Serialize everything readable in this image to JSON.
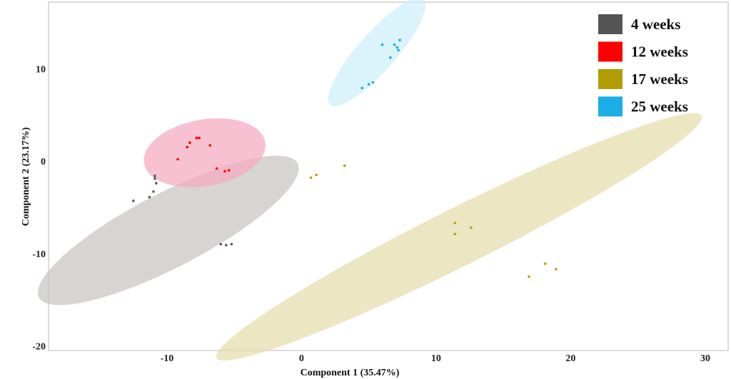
{
  "chart_data": {
    "type": "scatter",
    "title": "",
    "xlabel": "Component 1 (35.47%)",
    "ylabel": "Component 2 (23.17%)",
    "xlim": [
      -18.8,
      31.7
    ],
    "ylim": [
      -20.5,
      17.2
    ],
    "xticks": [
      -10,
      0,
      10,
      20,
      30
    ],
    "yticks": [
      -20,
      -10,
      0,
      10
    ],
    "grid": false,
    "legend_position": "top-right",
    "series": [
      {
        "name": "4 weeks",
        "color": "#5a5a5a",
        "ellipse_color": "#c9c4c4",
        "ellipse": {
          "center": [
            -9.9,
            -7.5
          ],
          "semi_major": 12.1,
          "semi_minor": 3.6,
          "angle_deg": 38.8
        },
        "points": [
          [
            -12.5,
            -4.3
          ],
          [
            -11.3,
            -3.9
          ],
          [
            -11.0,
            -3.3
          ],
          [
            -10.8,
            -2.4
          ],
          [
            -10.9,
            -1.9
          ],
          [
            -10.9,
            -1.6
          ],
          [
            -6.0,
            -9.0
          ],
          [
            -5.6,
            -9.1
          ],
          [
            -5.2,
            -9.0
          ]
        ]
      },
      {
        "name": "12 weeks",
        "color": "#ff0000",
        "ellipse_color": "#f5a9bf",
        "ellipse": {
          "center": [
            -7.2,
            0.9
          ],
          "semi_major": 4.7,
          "semi_minor": 3.5,
          "angle_deg": 24.3
        },
        "points": [
          [
            -9.2,
            0.2
          ],
          [
            -8.5,
            1.5
          ],
          [
            -8.3,
            2.0
          ],
          [
            -7.8,
            2.5
          ],
          [
            -7.6,
            2.5
          ],
          [
            -6.8,
            1.7
          ],
          [
            -6.3,
            -0.8
          ],
          [
            -5.7,
            -1.1
          ],
          [
            -5.4,
            -1.0
          ]
        ]
      },
      {
        "name": "17 weeks",
        "color": "#b8a000",
        "ellipse_color": "#e6dcaa",
        "ellipse": {
          "center": [
            11.7,
            -8.2
          ],
          "semi_major": 22.3,
          "semi_minor": 2.8,
          "angle_deg": 36.3
        },
        "points": [
          [
            0.7,
            -1.8
          ],
          [
            1.1,
            -1.5
          ],
          [
            3.2,
            -0.5
          ],
          [
            11.4,
            -6.7
          ],
          [
            11.4,
            -7.9
          ],
          [
            12.6,
            -7.2
          ],
          [
            16.9,
            -12.5
          ],
          [
            18.1,
            -11.1
          ],
          [
            18.9,
            -11.7
          ]
        ]
      },
      {
        "name": "25 weeks",
        "color": "#1ab0e0",
        "ellipse_color": "#cdeef8",
        "ellipse": {
          "center": [
            5.6,
            11.8
          ],
          "semi_major": 6.7,
          "semi_minor": 1.6,
          "angle_deg": 60.1
        },
        "points": [
          [
            4.5,
            7.9
          ],
          [
            5.0,
            8.3
          ],
          [
            5.3,
            8.5
          ],
          [
            6.0,
            12.6
          ],
          [
            6.6,
            11.2
          ],
          [
            6.9,
            12.6
          ],
          [
            7.1,
            12.3
          ],
          [
            7.2,
            12.0
          ],
          [
            7.3,
            13.1
          ]
        ]
      }
    ]
  }
}
